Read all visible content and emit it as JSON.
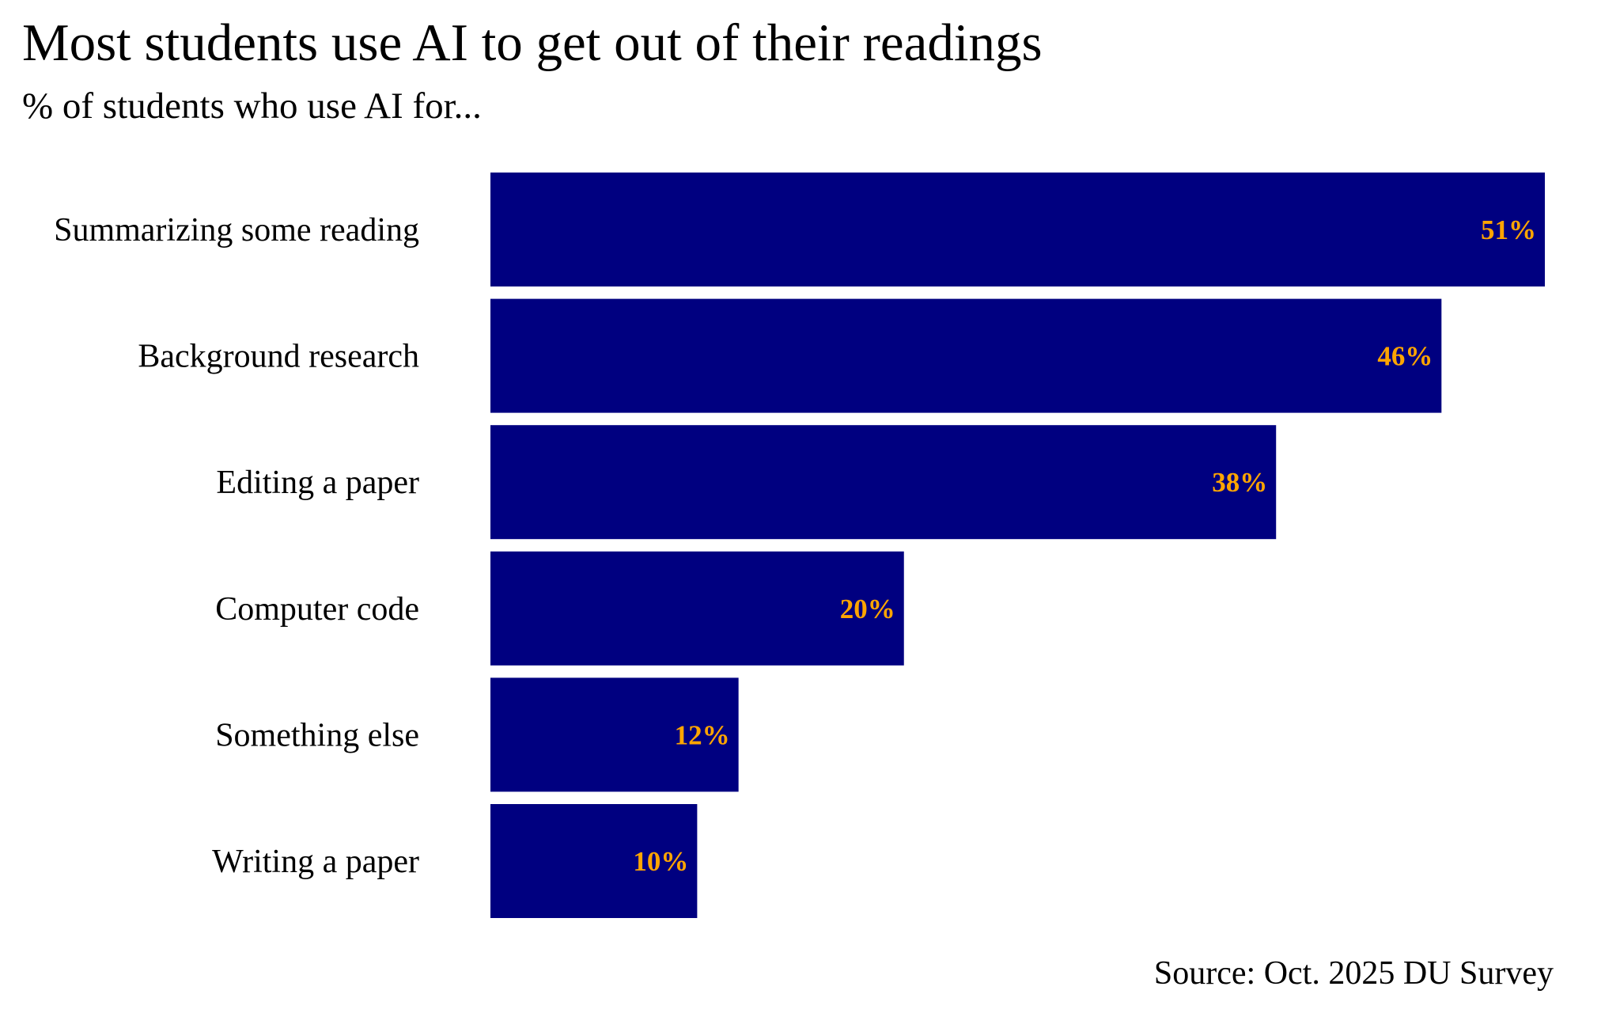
{
  "chart_data": {
    "type": "bar",
    "orientation": "horizontal",
    "title": "Most students use AI to get out of their readings",
    "subtitle": "% of students who use AI for...",
    "source": "Source: Oct. 2025 DU Survey",
    "categories": [
      "Summarizing some reading",
      "Background research",
      "Editing a paper",
      "Computer code",
      "Something else",
      "Writing a paper"
    ],
    "values": [
      51,
      46,
      38,
      20,
      12,
      10
    ],
    "value_labels": [
      "51%",
      "46%",
      "38%",
      "20%",
      "12%",
      "10%"
    ],
    "xlabel": "",
    "ylabel": "",
    "xlim": [
      0,
      51
    ],
    "grid": false,
    "legend": "none",
    "colors": {
      "bar": "#000080",
      "value_label": "#FFA500",
      "text": "#000000"
    }
  }
}
